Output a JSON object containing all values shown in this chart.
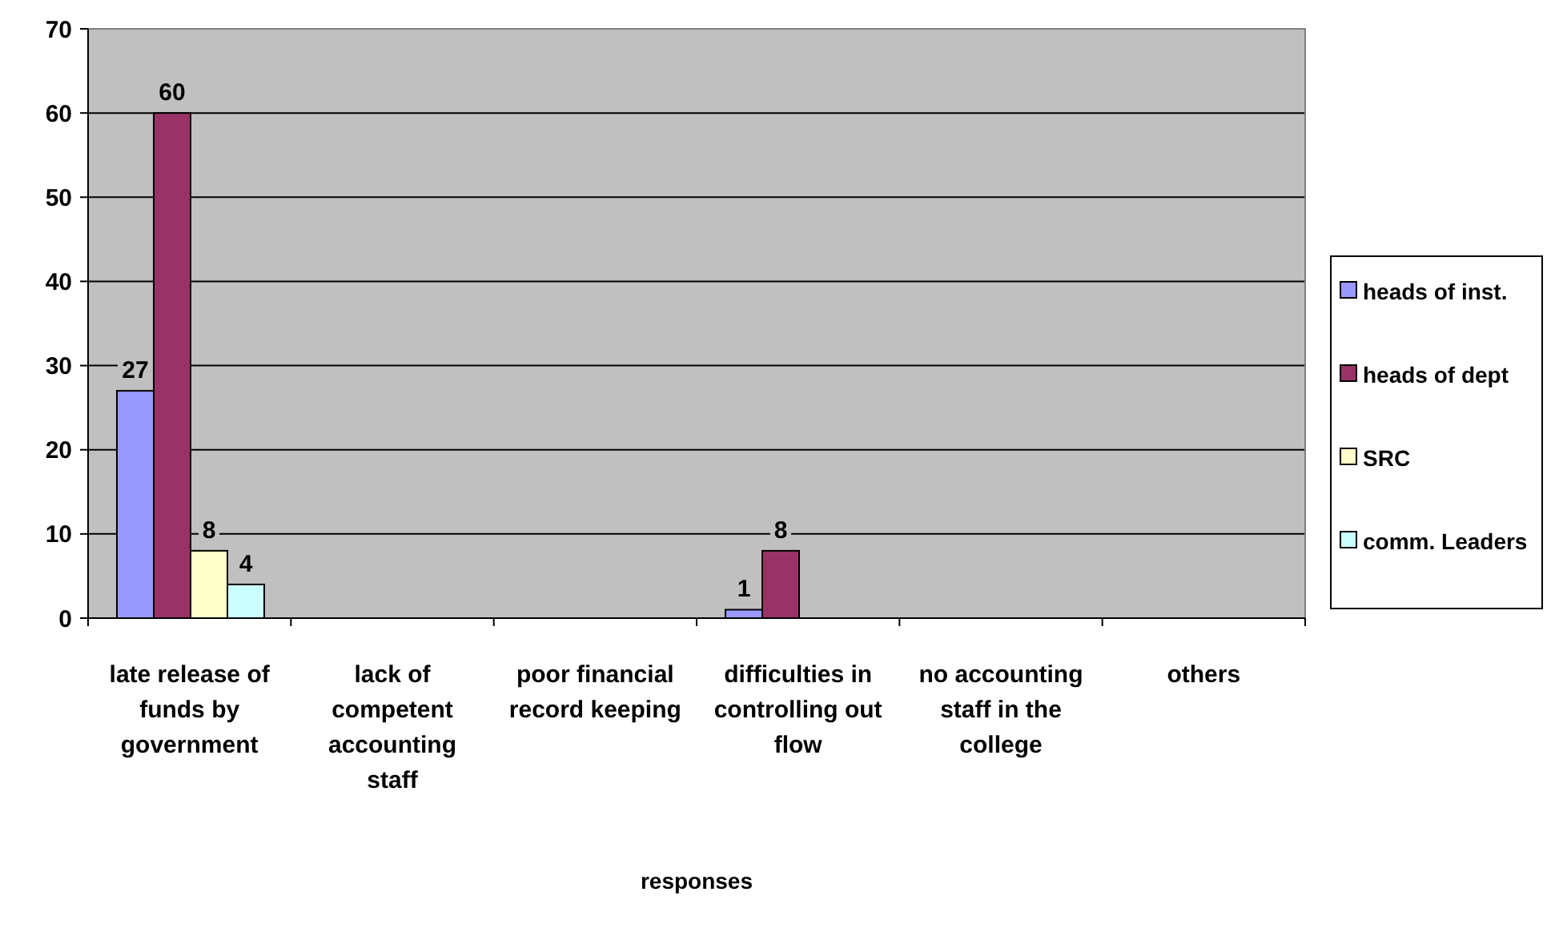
{
  "chart_data": {
    "type": "bar",
    "xlabel": "responses",
    "categories": [
      "late release of funds by government",
      "lack of competent accounting staff",
      "poor financial record keeping",
      "difficulties in controlling out flow",
      "no accounting staff in the college",
      "others"
    ],
    "series": [
      {
        "name": "heads of inst.",
        "color": "#9999ff",
        "values": [
          27,
          0,
          0,
          1,
          0,
          0
        ],
        "value_labels": [
          "27",
          null,
          null,
          "1",
          null,
          null
        ]
      },
      {
        "name": "heads of dept",
        "color": "#993366",
        "values": [
          60,
          0,
          0,
          8,
          0,
          0
        ],
        "value_labels": [
          "60",
          null,
          null,
          "8",
          null,
          null
        ]
      },
      {
        "name": "SRC",
        "color": "#ffffcc",
        "values": [
          8,
          0,
          0,
          0,
          0,
          0
        ],
        "value_labels": [
          "8",
          null,
          null,
          null,
          null,
          null
        ]
      },
      {
        "name": "comm. Leaders",
        "color": "#ccffff",
        "values": [
          4,
          0,
          0,
          0,
          0,
          0
        ],
        "value_labels": [
          "4",
          null,
          null,
          null,
          null,
          null
        ]
      }
    ],
    "ylim": [
      0,
      70
    ],
    "yticks": [
      0,
      10,
      20,
      30,
      40,
      50,
      60,
      70
    ],
    "grid": "y",
    "legend": "right"
  }
}
